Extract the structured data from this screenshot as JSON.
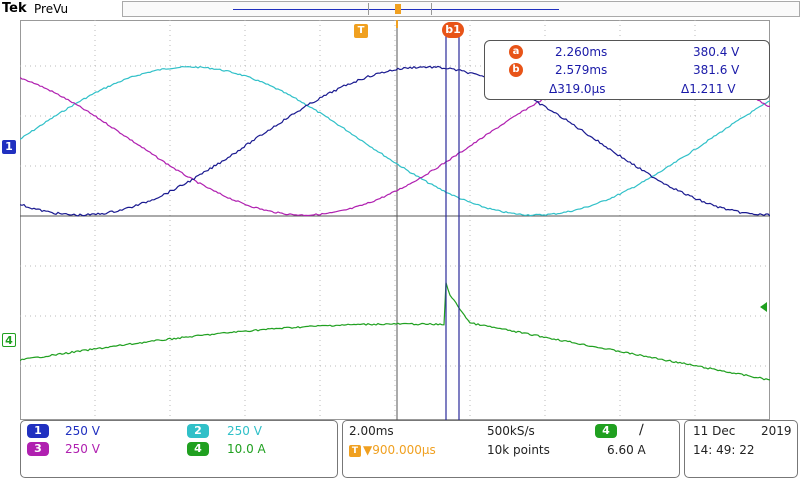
{
  "header": {
    "brand": "Tek",
    "mode": "PreVu"
  },
  "markers": {
    "trigger": "T",
    "cursor_pair": "b1"
  },
  "measurements": {
    "a_label": "a",
    "b_label": "b",
    "a_time": "2.260ms",
    "a_volt": "380.4 V",
    "b_time": "2.579ms",
    "b_volt": "381.6 V",
    "delta_time": "Δ319.0µs",
    "delta_volt": "Δ1.211 V"
  },
  "channel_markers": {
    "ch1": "1",
    "ch4": "4"
  },
  "channels": [
    {
      "num": "1",
      "scale": "250 V",
      "color": "#2030c0"
    },
    {
      "num": "2",
      "scale": "250 V",
      "color": "#30c0c8"
    },
    {
      "num": "3",
      "scale": "250 V",
      "color": "#b020b0"
    },
    {
      "num": "4",
      "scale": "10.0 A",
      "color": "#20a020"
    }
  ],
  "horizontal": {
    "timebase": "2.00ms",
    "sample_rate": "500kS/s",
    "trigger_delay": "▼900.000µs",
    "record_length": "10k points"
  },
  "trigger": {
    "source": "4",
    "slope_icon": "∕",
    "level": "6.60 A"
  },
  "datetime": {
    "date": "11 Dec",
    "year": "2019",
    "time": "14: 49: 22"
  },
  "colors": {
    "ch1": "#1a1a90",
    "ch2": "#30c0c8",
    "ch3": "#b020b0",
    "ch4": "#20a020",
    "cursor": "#2a2a9a",
    "accent": "#e85418"
  }
}
